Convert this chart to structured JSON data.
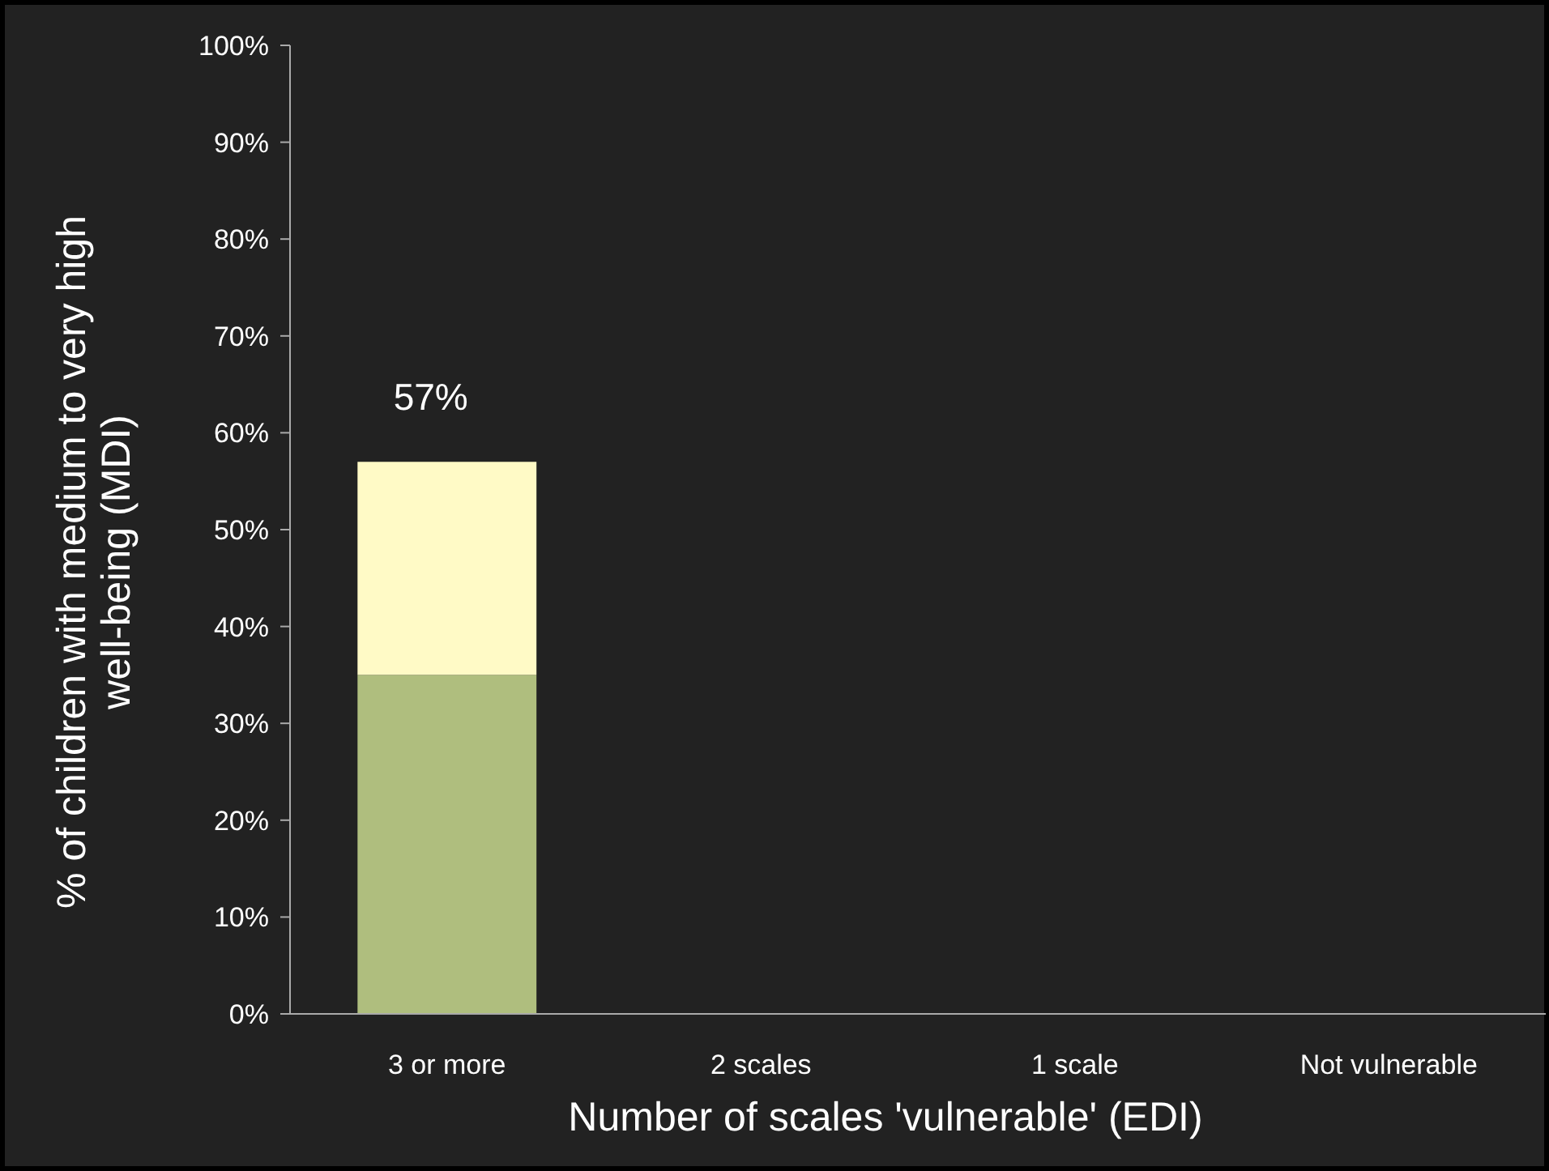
{
  "chart_data": {
    "type": "bar",
    "stacked": true,
    "xlabel": "Number of scales 'vulnerable' (EDI)",
    "ylabel": "% of children with medium to very high well-being (MDI)",
    "categories": [
      "3 or more",
      "2 scales",
      "1 scale",
      "Not vulnerable"
    ],
    "series": [
      {
        "color": "#afbe7e",
        "values": [
          35,
          null,
          null,
          null
        ]
      },
      {
        "color": "#fffac6",
        "values": [
          22,
          null,
          null,
          null
        ]
      }
    ],
    "totals": [
      "57%",
      null,
      null,
      null
    ],
    "ylim": [
      0,
      100
    ],
    "yticks": [
      {
        "value": 0,
        "label": "0%"
      },
      {
        "value": 10,
        "label": "10%"
      },
      {
        "value": 20,
        "label": "20%"
      },
      {
        "value": 30,
        "label": "30%"
      },
      {
        "value": 40,
        "label": "40%"
      },
      {
        "value": 50,
        "label": "50%"
      },
      {
        "value": 60,
        "label": "60%"
      },
      {
        "value": 70,
        "label": "70%"
      },
      {
        "value": 80,
        "label": "80%"
      },
      {
        "value": 90,
        "label": "90%"
      },
      {
        "value": 100,
        "label": "100%"
      }
    ],
    "grid": false
  }
}
